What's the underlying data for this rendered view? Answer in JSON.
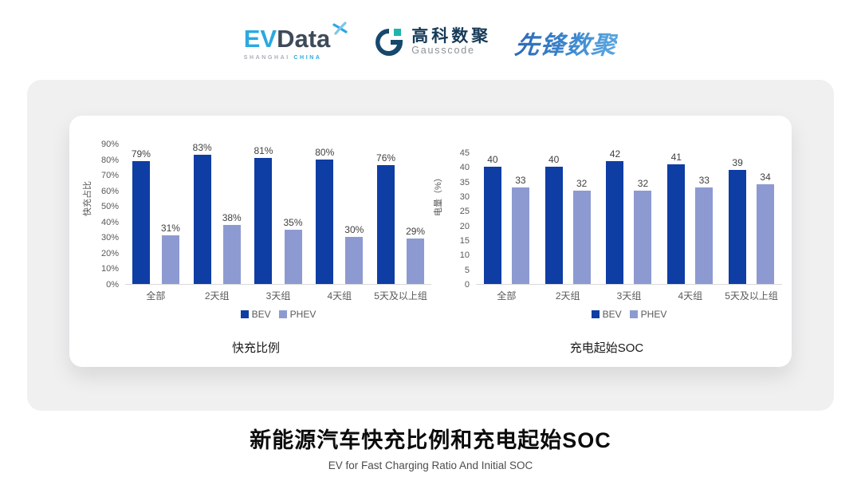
{
  "header": {
    "evdata": {
      "ev": "EV",
      "data": "Data",
      "sub_left": "SHANGHAI",
      "sub_right": "CHINA"
    },
    "gausscode": {
      "cn": "高科数聚",
      "en": "Gausscode"
    },
    "xianfeng": "先锋数聚"
  },
  "colors": {
    "bev": "#0E3DA4",
    "phev": "#8D9AD1",
    "evdata_blue": "#2aa9e0",
    "evdata_dark": "#3e4a59",
    "gauss_navy": "#16486e",
    "gauss_teal": "#1fb5ad",
    "stage_gray": "#f0f0f1",
    "axis_text": "#595959"
  },
  "chart_data": [
    {
      "type": "bar",
      "title": "快充比例",
      "ylabel": "快充占比",
      "xlabel": "",
      "categories": [
        "全部",
        "2天组",
        "3天组",
        "4天组",
        "5天及以上组"
      ],
      "series": [
        {
          "name": "BEV",
          "color": "#0E3DA4",
          "values": [
            79,
            83,
            81,
            80,
            76
          ]
        },
        {
          "name": "PHEV",
          "color": "#8D9AD1",
          "values": [
            31,
            38,
            35,
            30,
            29
          ]
        }
      ],
      "ylim": [
        0,
        90
      ],
      "yticks": [
        "0%",
        "10%",
        "20%",
        "30%",
        "40%",
        "50%",
        "60%",
        "70%",
        "80%",
        "90%"
      ],
      "value_suffix": "%",
      "grid": false,
      "legend_position": "bottom"
    },
    {
      "type": "bar",
      "title": "充电起始SOC",
      "ylabel": "电量（%）",
      "xlabel": "",
      "categories": [
        "全部",
        "2天组",
        "3天组",
        "4天组",
        "5天及以上组"
      ],
      "series": [
        {
          "name": "BEV",
          "color": "#0E3DA4",
          "values": [
            40,
            40,
            42,
            41,
            39
          ]
        },
        {
          "name": "PHEV",
          "color": "#8D9AD1",
          "values": [
            33,
            32,
            32,
            33,
            34
          ]
        }
      ],
      "ylim": [
        0,
        45
      ],
      "yticks": [
        "0",
        "5",
        "10",
        "15",
        "20",
        "25",
        "30",
        "35",
        "40",
        "45"
      ],
      "value_suffix": "",
      "grid": false,
      "legend_position": "bottom"
    }
  ],
  "footer": {
    "title": "新能源汽车快充比例和充电起始SOC",
    "subtitle": "EV for Fast Charging Ratio And Initial SOC"
  }
}
